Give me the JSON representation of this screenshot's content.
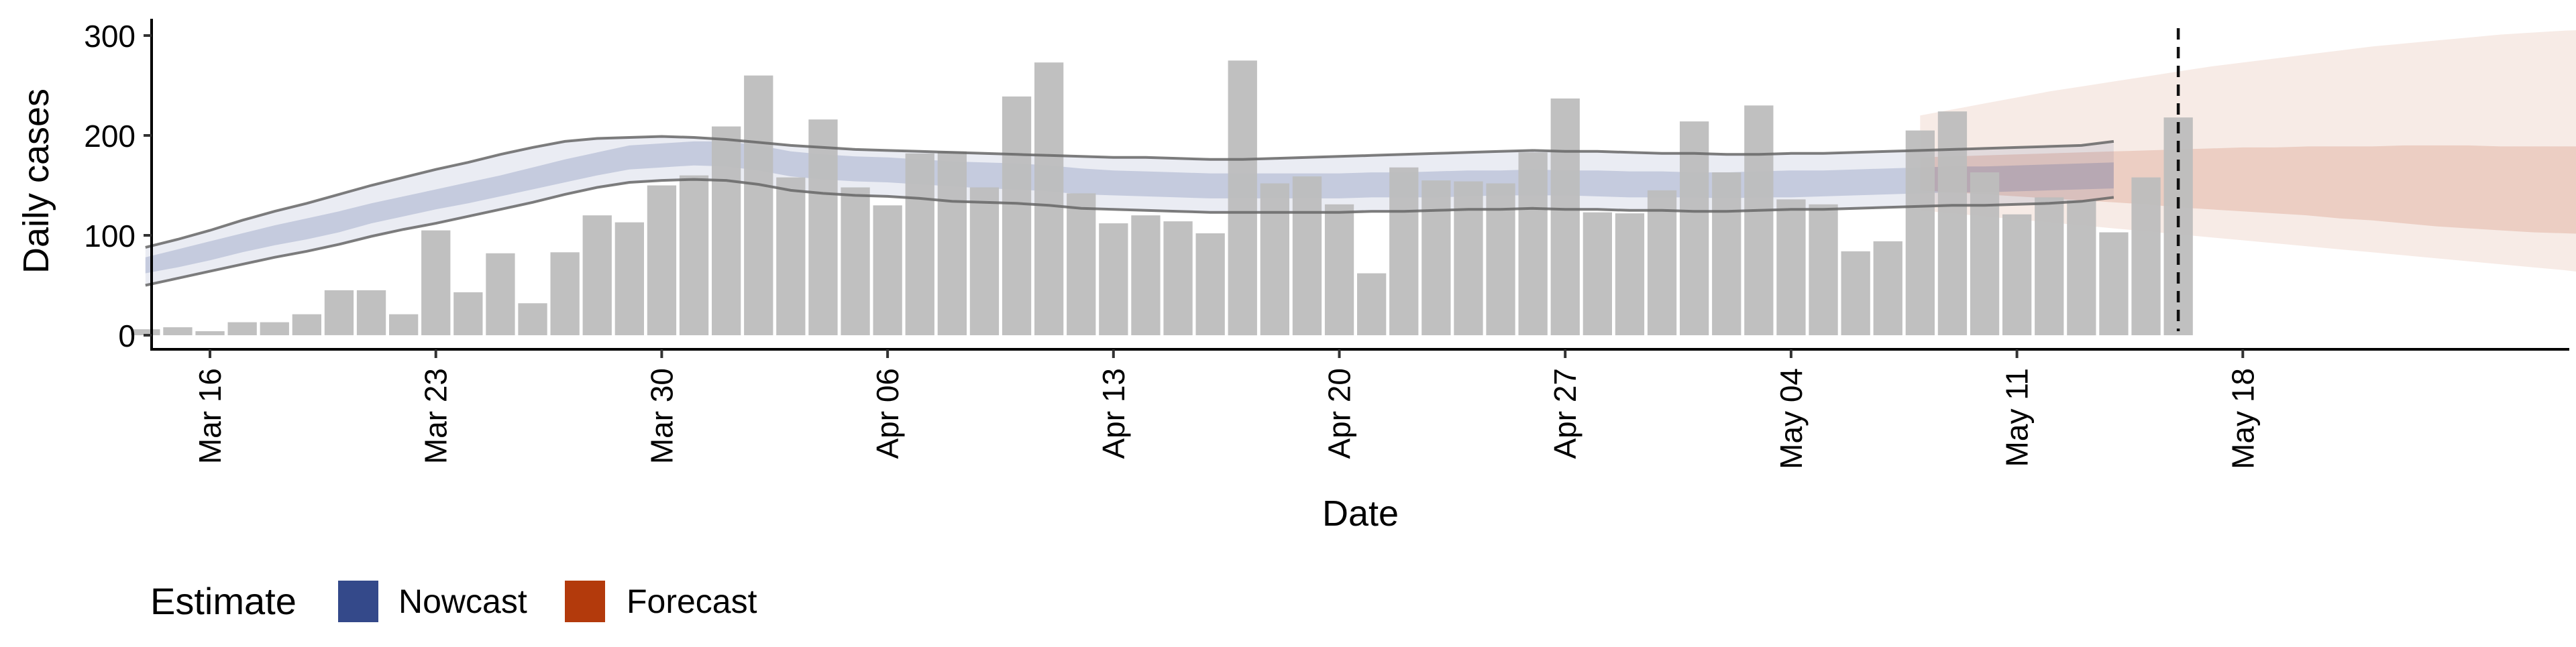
{
  "chart_data": {
    "type": "bar",
    "xlabel": "Date",
    "ylabel": "Daily cases",
    "ylim": [
      0,
      320
    ],
    "y_ticks": [
      0,
      100,
      200,
      300
    ],
    "x_start": "2020-03-12",
    "x_ticks": [
      {
        "date": "2020-03-16",
        "label": "Mar 16"
      },
      {
        "date": "2020-03-23",
        "label": "Mar 23"
      },
      {
        "date": "2020-03-30",
        "label": "Mar 30"
      },
      {
        "date": "2020-04-06",
        "label": "Apr 06"
      },
      {
        "date": "2020-04-13",
        "label": "Apr 13"
      },
      {
        "date": "2020-04-20",
        "label": "Apr 20"
      },
      {
        "date": "2020-04-27",
        "label": "Apr 27"
      },
      {
        "date": "2020-05-04",
        "label": "May 04"
      },
      {
        "date": "2020-05-11",
        "label": "May 11"
      },
      {
        "date": "2020-05-18",
        "label": "May 18"
      }
    ],
    "bars": {
      "start_date": "2020-03-14",
      "values": [
        6,
        8,
        4,
        13,
        13,
        21,
        45,
        45,
        21,
        105,
        43,
        82,
        32,
        83,
        120,
        113,
        150,
        160,
        209,
        260,
        158,
        216,
        148,
        130,
        182,
        184,
        148,
        239,
        273,
        142,
        112,
        120,
        114,
        102,
        275,
        152,
        159,
        131,
        62,
        168,
        155,
        154,
        152,
        183,
        237,
        123,
        122,
        145,
        214,
        163,
        230,
        136,
        131,
        84,
        94,
        205,
        224,
        163,
        121,
        138,
        135,
        103,
        158,
        218
      ],
      "color": "#bdbdbd"
    },
    "forecast_cutoff_date": "2020-05-16",
    "legend": {
      "title": "Estimate",
      "position": "bottom",
      "items": [
        {
          "label": "Nowcast",
          "color": "#34498a"
        },
        {
          "label": "Forecast",
          "color": "#b33a0c"
        }
      ]
    },
    "nowcast": {
      "start_date": "2020-03-14",
      "color": "#34498a",
      "median": [
        70,
        77,
        84,
        92,
        100,
        106,
        113,
        122,
        129,
        136,
        143,
        150,
        157,
        165,
        172,
        178,
        180,
        182,
        182,
        178,
        171,
        168,
        166,
        165,
        163,
        161,
        160,
        159,
        157,
        154,
        152,
        151,
        150,
        150,
        149,
        149,
        149,
        150,
        150,
        150,
        151,
        152,
        152,
        153,
        152,
        152,
        151,
        151,
        151,
        150,
        151,
        152,
        152,
        153,
        154,
        155,
        156,
        156,
        156,
        157,
        158,
        159
      ],
      "inner_lower": [
        62,
        68,
        75,
        83,
        90,
        96,
        103,
        112,
        119,
        126,
        132,
        139,
        146,
        153,
        160,
        166,
        168,
        170,
        169,
        165,
        159,
        156,
        154,
        153,
        151,
        149,
        147,
        146,
        144,
        141,
        140,
        139,
        138,
        137,
        137,
        137,
        137,
        137,
        138,
        138,
        138,
        139,
        140,
        140,
        140,
        139,
        138,
        138,
        138,
        137,
        138,
        138,
        139,
        140,
        141,
        142,
        143,
        143,
        144,
        145,
        146,
        147
      ],
      "inner_upper": [
        78,
        86,
        94,
        102,
        110,
        117,
        124,
        132,
        139,
        146,
        153,
        160,
        168,
        176,
        183,
        190,
        192,
        194,
        194,
        190,
        184,
        181,
        179,
        178,
        176,
        174,
        173,
        172,
        170,
        167,
        165,
        164,
        163,
        162,
        162,
        162,
        162,
        162,
        163,
        163,
        164,
        165,
        165,
        166,
        165,
        165,
        164,
        164,
        163,
        163,
        164,
        165,
        165,
        166,
        167,
        168,
        169,
        169,
        170,
        171,
        172,
        173
      ],
      "outer_lower": [
        50,
        57,
        64,
        71,
        78,
        84,
        91,
        99,
        106,
        112,
        119,
        126,
        133,
        141,
        148,
        153,
        155,
        156,
        155,
        151,
        145,
        142,
        140,
        139,
        137,
        134,
        133,
        132,
        130,
        127,
        126,
        125,
        124,
        123,
        123,
        123,
        123,
        123,
        124,
        124,
        125,
        126,
        126,
        127,
        126,
        126,
        125,
        125,
        124,
        124,
        125,
        126,
        126,
        127,
        128,
        129,
        130,
        130,
        131,
        132,
        134,
        138
      ],
      "outer_upper": [
        88,
        96,
        105,
        115,
        124,
        132,
        141,
        150,
        158,
        166,
        173,
        181,
        188,
        194,
        197,
        198,
        199,
        198,
        196,
        193,
        190,
        188,
        186,
        185,
        184,
        183,
        182,
        181,
        180,
        179,
        178,
        178,
        177,
        176,
        176,
        177,
        178,
        179,
        180,
        181,
        182,
        183,
        184,
        185,
        184,
        184,
        183,
        182,
        182,
        181,
        181,
        182,
        182,
        183,
        184,
        185,
        186,
        187,
        188,
        189,
        190,
        194
      ]
    },
    "forecast": {
      "start_date": "2020-05-08",
      "color": "#b33a0c",
      "inner_lower": [
        145,
        143,
        141,
        139,
        137,
        135,
        133,
        131,
        128,
        126,
        124,
        122,
        120,
        117,
        115,
        112,
        109,
        107,
        105,
        103,
        102,
        101,
        100
      ],
      "inner_upper": [
        178,
        179,
        180,
        181,
        182,
        183,
        184,
        185,
        186,
        187,
        188,
        188,
        189,
        189,
        189,
        190,
        190,
        190,
        189,
        189,
        189,
        189,
        188
      ],
      "outer_lower": [
        125,
        122,
        119,
        116,
        113,
        110,
        107,
        104,
        101,
        98,
        95,
        92,
        89,
        86,
        83,
        80,
        77,
        74,
        71,
        68,
        65,
        61,
        57
      ],
      "outer_upper": [
        220,
        226,
        232,
        238,
        244,
        249,
        254,
        259,
        264,
        269,
        273,
        277,
        281,
        285,
        289,
        292,
        295,
        298,
        301,
        303,
        305,
        306,
        307
      ]
    }
  }
}
